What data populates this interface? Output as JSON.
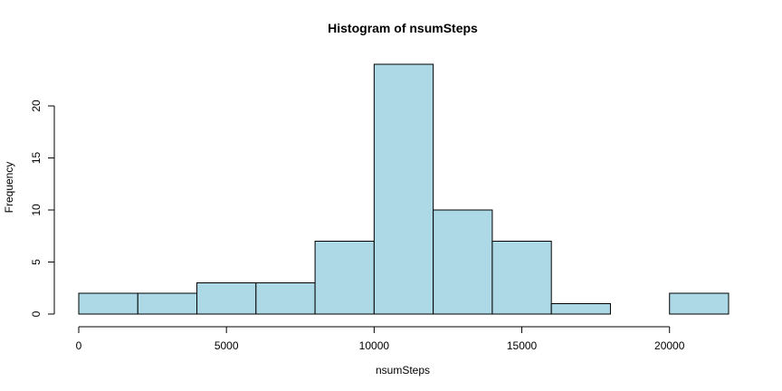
{
  "chart_data": {
    "type": "bar",
    "title": "Histogram of nsumSteps",
    "xlabel": "nsumSteps",
    "ylabel": "Frequency",
    "bin_edges": [
      0,
      2000,
      4000,
      6000,
      8000,
      10000,
      12000,
      14000,
      16000,
      18000,
      20000,
      22000
    ],
    "values": [
      2,
      2,
      3,
      3,
      7,
      24,
      10,
      7,
      1,
      0,
      2
    ],
    "xlim": [
      0,
      22000
    ],
    "ylim": [
      0,
      24
    ],
    "x_ticks": [
      0,
      5000,
      10000,
      15000,
      20000
    ],
    "y_ticks": [
      0,
      5,
      10,
      15,
      20
    ],
    "bar_fill": "#add8e6",
    "bar_stroke": "#000000",
    "grid": false,
    "legend": "none"
  }
}
